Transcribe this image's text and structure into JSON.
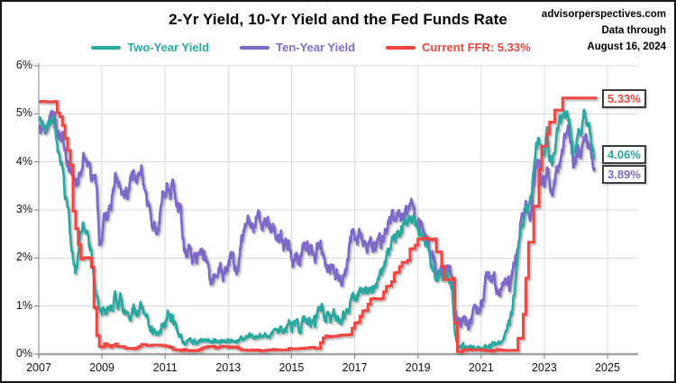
{
  "header": {
    "title": "2-Yr Yield, 10-Yr Yield and the Fed Funds Rate",
    "source_line1": "advisorperspectives.com",
    "source_line2": "Data through",
    "source_line3": "August 16, 2024"
  },
  "legend": [
    {
      "label": "Two-Year Yield",
      "color": "#2AA79E"
    },
    {
      "label": "Ten-Year Yield",
      "color": "#7D6AC8"
    },
    {
      "label": "Current FFR: 5.33%",
      "color": "#F0453F"
    }
  ],
  "callouts": [
    {
      "label": "5.33%",
      "color": "#F0453F",
      "value": 5.33
    },
    {
      "label": "4.06%",
      "color": "#2AA79E",
      "value": 4.06
    },
    {
      "label": "3.89%",
      "color": "#7D6AC8",
      "value": 3.89
    }
  ],
  "chart_data": {
    "type": "line",
    "title": "2-Yr Yield, 10-Yr Yield and the Fed Funds Rate",
    "xlabel": "",
    "ylabel": "",
    "xlim": [
      2007,
      2026
    ],
    "ylim": [
      0,
      6
    ],
    "grid": true,
    "legend_position": "top",
    "x_ticks": [
      2007,
      2009,
      2011,
      2013,
      2015,
      2017,
      2019,
      2021,
      2023,
      2025
    ],
    "y_ticks": [
      0,
      1,
      2,
      3,
      4,
      5,
      6
    ],
    "y_tick_labels": [
      "0%",
      "1%",
      "2%",
      "3%",
      "4%",
      "5%",
      "6%"
    ],
    "x_start": 2007.0,
    "x_step": 0.083333,
    "series": [
      {
        "name": "Two-Year Yield",
        "color": "#2AA79E",
        "style": "noisy-line",
        "current": 4.06,
        "values": [
          4.88,
          4.85,
          4.57,
          4.67,
          4.77,
          4.98,
          4.82,
          4.31,
          4.01,
          3.97,
          3.34,
          3.12,
          2.48,
          1.97,
          1.62,
          2.05,
          2.45,
          2.77,
          2.57,
          2.36,
          2.08,
          1.61,
          1.21,
          0.82,
          0.81,
          0.98,
          0.93,
          0.93,
          0.93,
          1.18,
          1.02,
          1.12,
          0.96,
          0.95,
          0.8,
          0.87,
          0.93,
          0.86,
          0.96,
          1.06,
          0.83,
          0.72,
          0.62,
          0.52,
          0.48,
          0.38,
          0.45,
          0.62,
          0.61,
          0.77,
          0.7,
          0.73,
          0.56,
          0.41,
          0.41,
          0.23,
          0.21,
          0.28,
          0.25,
          0.26,
          0.24,
          0.28,
          0.34,
          0.27,
          0.29,
          0.29,
          0.25,
          0.27,
          0.26,
          0.28,
          0.27,
          0.26,
          0.27,
          0.27,
          0.26,
          0.23,
          0.25,
          0.33,
          0.34,
          0.36,
          0.4,
          0.34,
          0.3,
          0.34,
          0.39,
          0.33,
          0.4,
          0.42,
          0.39,
          0.45,
          0.51,
          0.47,
          0.57,
          0.45,
          0.53,
          0.64,
          0.55,
          0.62,
          0.64,
          0.54,
          0.61,
          0.69,
          0.67,
          0.7,
          0.71,
          0.64,
          0.88,
          0.98,
          0.9,
          0.73,
          0.88,
          0.77,
          0.82,
          0.73,
          0.67,
          0.74,
          0.77,
          0.84,
          1.0,
          1.2,
          1.21,
          1.2,
          1.31,
          1.24,
          1.3,
          1.34,
          1.37,
          1.34,
          1.38,
          1.55,
          1.7,
          1.84,
          2.03,
          2.18,
          2.28,
          2.46,
          2.51,
          2.52,
          2.61,
          2.64,
          2.77,
          2.86,
          2.86,
          2.68,
          2.54,
          2.5,
          2.44,
          2.33,
          2.21,
          1.81,
          1.84,
          1.57,
          1.65,
          1.55,
          1.61,
          1.61,
          1.53,
          1.33,
          0.45,
          0.22,
          0.17,
          0.19,
          0.15,
          0.14,
          0.14,
          0.15,
          0.17,
          0.13,
          0.12,
          0.11,
          0.15,
          0.16,
          0.16,
          0.2,
          0.22,
          0.22,
          0.26,
          0.4,
          0.52,
          0.68,
          0.99,
          1.44,
          2.13,
          2.62,
          2.63,
          3.0,
          3.03,
          3.27,
          3.87,
          4.38,
          4.48,
          4.31,
          4.21,
          4.7,
          3.95,
          4.0,
          4.3,
          4.65,
          4.85,
          4.97,
          5.04,
          5.07,
          4.7,
          4.25,
          4.35,
          4.62,
          4.58,
          4.98,
          4.9,
          4.73,
          4.4,
          4.06
        ]
      },
      {
        "name": "Ten-Year Yield",
        "color": "#7D6AC8",
        "style": "noisy-line",
        "current": 3.89,
        "values": [
          4.76,
          4.72,
          4.56,
          4.69,
          4.75,
          5.1,
          5.0,
          4.67,
          4.52,
          4.53,
          4.15,
          4.1,
          3.74,
          3.74,
          3.51,
          3.68,
          3.88,
          4.1,
          4.01,
          3.89,
          3.69,
          3.81,
          3.53,
          2.25,
          2.52,
          2.87,
          2.82,
          2.93,
          3.29,
          3.72,
          3.56,
          3.59,
          3.4,
          3.39,
          3.4,
          3.59,
          3.73,
          3.69,
          3.73,
          3.85,
          3.42,
          3.2,
          3.01,
          2.7,
          2.65,
          2.54,
          2.76,
          3.29,
          3.39,
          3.58,
          3.41,
          3.46,
          3.17,
          3.0,
          3.0,
          2.3,
          1.98,
          2.15,
          2.01,
          1.98,
          1.97,
          1.97,
          2.17,
          2.05,
          1.8,
          1.62,
          1.53,
          1.68,
          1.72,
          1.75,
          1.65,
          1.72,
          1.91,
          1.98,
          1.96,
          1.76,
          1.93,
          2.3,
          2.58,
          2.74,
          2.81,
          2.62,
          2.72,
          2.9,
          2.86,
          2.71,
          2.72,
          2.71,
          2.56,
          2.6,
          2.54,
          2.42,
          2.53,
          2.3,
          2.33,
          2.21,
          1.88,
          1.98,
          2.04,
          1.94,
          2.2,
          2.36,
          2.32,
          2.17,
          2.17,
          2.07,
          2.26,
          2.24,
          2.09,
          1.78,
          1.89,
          1.81,
          1.81,
          1.64,
          1.5,
          1.56,
          1.63,
          1.76,
          2.14,
          2.49,
          2.43,
          2.42,
          2.48,
          2.3,
          2.3,
          2.19,
          2.32,
          2.21,
          2.2,
          2.36,
          2.35,
          2.4,
          2.58,
          2.86,
          2.84,
          2.87,
          2.98,
          2.91,
          2.89,
          2.89,
          3.0,
          3.15,
          3.12,
          2.83,
          2.71,
          2.68,
          2.57,
          2.53,
          2.4,
          2.07,
          2.06,
          1.63,
          1.7,
          1.71,
          1.81,
          1.86,
          1.76,
          1.5,
          0.87,
          0.66,
          0.67,
          0.73,
          0.62,
          0.58,
          0.68,
          0.79,
          0.87,
          0.93,
          1.08,
          1.26,
          1.61,
          1.64,
          1.62,
          1.52,
          1.32,
          1.28,
          1.37,
          1.58,
          1.56,
          1.47,
          1.76,
          1.93,
          2.13,
          2.75,
          2.9,
          3.14,
          2.9,
          2.9,
          3.52,
          3.98,
          3.89,
          3.62,
          3.5,
          3.9,
          3.55,
          3.45,
          3.65,
          3.8,
          3.95,
          4.2,
          4.6,
          4.85,
          4.45,
          3.9,
          4.05,
          4.25,
          4.2,
          4.65,
          4.45,
          4.3,
          4.2,
          3.89
        ]
      },
      {
        "name": "Current FFR",
        "color": "#F0453F",
        "style": "step",
        "current": 5.33,
        "values": [
          5.25,
          5.26,
          5.26,
          5.25,
          5.25,
          5.25,
          5.26,
          5.02,
          4.94,
          4.76,
          4.49,
          4.24,
          3.94,
          2.98,
          2.61,
          2.28,
          1.98,
          2.0,
          2.01,
          2.0,
          1.81,
          0.97,
          0.39,
          0.16,
          0.15,
          0.22,
          0.18,
          0.15,
          0.18,
          0.21,
          0.16,
          0.16,
          0.15,
          0.12,
          0.12,
          0.12,
          0.11,
          0.13,
          0.16,
          0.2,
          0.2,
          0.18,
          0.18,
          0.19,
          0.19,
          0.19,
          0.19,
          0.18,
          0.17,
          0.16,
          0.14,
          0.1,
          0.09,
          0.09,
          0.07,
          0.1,
          0.08,
          0.07,
          0.08,
          0.07,
          0.08,
          0.1,
          0.13,
          0.14,
          0.16,
          0.16,
          0.16,
          0.13,
          0.14,
          0.16,
          0.16,
          0.16,
          0.14,
          0.15,
          0.14,
          0.15,
          0.11,
          0.09,
          0.09,
          0.08,
          0.08,
          0.09,
          0.08,
          0.09,
          0.07,
          0.07,
          0.08,
          0.09,
          0.09,
          0.1,
          0.09,
          0.09,
          0.09,
          0.09,
          0.09,
          0.12,
          0.11,
          0.11,
          0.11,
          0.12,
          0.12,
          0.13,
          0.13,
          0.14,
          0.14,
          0.12,
          0.12,
          0.24,
          0.34,
          0.38,
          0.36,
          0.37,
          0.37,
          0.38,
          0.39,
          0.4,
          0.4,
          0.4,
          0.41,
          0.54,
          0.65,
          0.66,
          0.79,
          0.9,
          0.91,
          1.04,
          1.15,
          1.16,
          1.15,
          1.15,
          1.16,
          1.3,
          1.41,
          1.42,
          1.51,
          1.69,
          1.7,
          1.82,
          1.91,
          1.91,
          1.95,
          2.19,
          2.2,
          2.27,
          2.4,
          2.4,
          2.41,
          2.42,
          2.39,
          2.38,
          2.4,
          2.13,
          2.13,
          1.83,
          1.55,
          1.55,
          1.55,
          1.58,
          0.65,
          0.05,
          0.05,
          0.08,
          0.09,
          0.1,
          0.09,
          0.09,
          0.09,
          0.09,
          0.09,
          0.08,
          0.07,
          0.07,
          0.06,
          0.08,
          0.1,
          0.09,
          0.08,
          0.08,
          0.08,
          0.08,
          0.08,
          0.08,
          0.33,
          0.33,
          0.83,
          1.58,
          2.33,
          2.33,
          3.08,
          3.08,
          3.83,
          4.33,
          4.33,
          4.58,
          4.83,
          4.83,
          5.08,
          5.08,
          5.08,
          5.33,
          5.33,
          5.33,
          5.33,
          5.33,
          5.33,
          5.33,
          5.33,
          5.33,
          5.33,
          5.33,
          5.33,
          5.33
        ]
      }
    ]
  }
}
